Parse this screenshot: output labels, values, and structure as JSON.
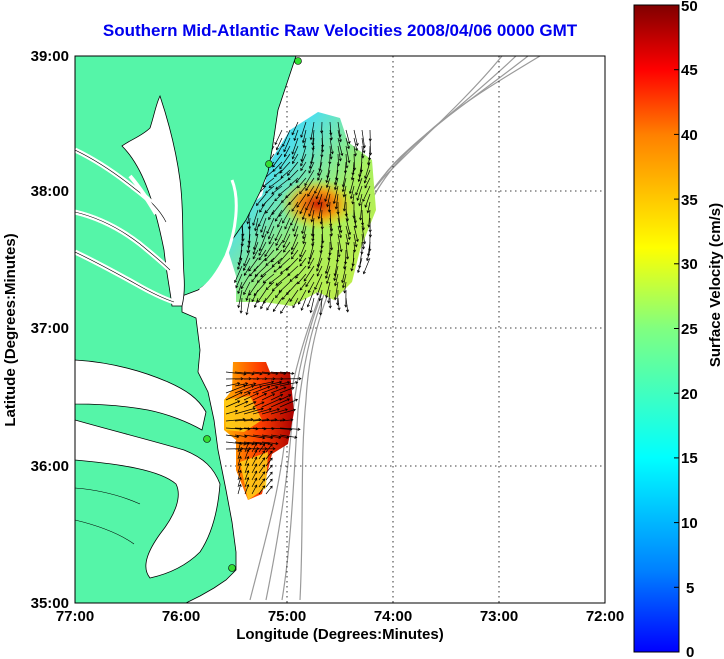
{
  "title": "Southern Mid-Atlantic Raw Velocities 2008/04/06 0000 GMT",
  "x_axis": {
    "label": "Longitude (Degrees:Minutes)",
    "ticks": [
      "77:00",
      "76:00",
      "75:00",
      "74:00",
      "73:00",
      "72:00"
    ]
  },
  "y_axis": {
    "label": "Latitude (Degrees:Minutes)",
    "ticks": [
      "39:00",
      "38:00",
      "37:00",
      "36:00",
      "35:00"
    ]
  },
  "colorbar": {
    "label": "Surface Velocity (cm/s)",
    "ticks": [
      "50",
      "45",
      "40",
      "35",
      "30",
      "25",
      "20",
      "15",
      "10",
      "5",
      "0"
    ],
    "min": 0,
    "max": 50
  },
  "colors": {
    "land": "#55f5a8",
    "title": "#0000ee",
    "bathymetry": "#9a9a9a",
    "station": "#33dd33"
  }
}
